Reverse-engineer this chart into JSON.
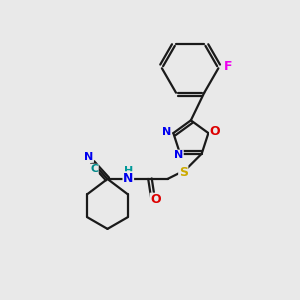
{
  "bg_color": "#e9e9e9",
  "bond_color": "#1a1a1a",
  "bond_width": 1.6,
  "atom_colors": {
    "N": "#0000ee",
    "O": "#dd0000",
    "S": "#ccaa00",
    "F": "#ee00ee",
    "C_cyan": "#008888",
    "H": "#009999"
  },
  "figsize": [
    3.0,
    3.0
  ],
  "dpi": 100
}
